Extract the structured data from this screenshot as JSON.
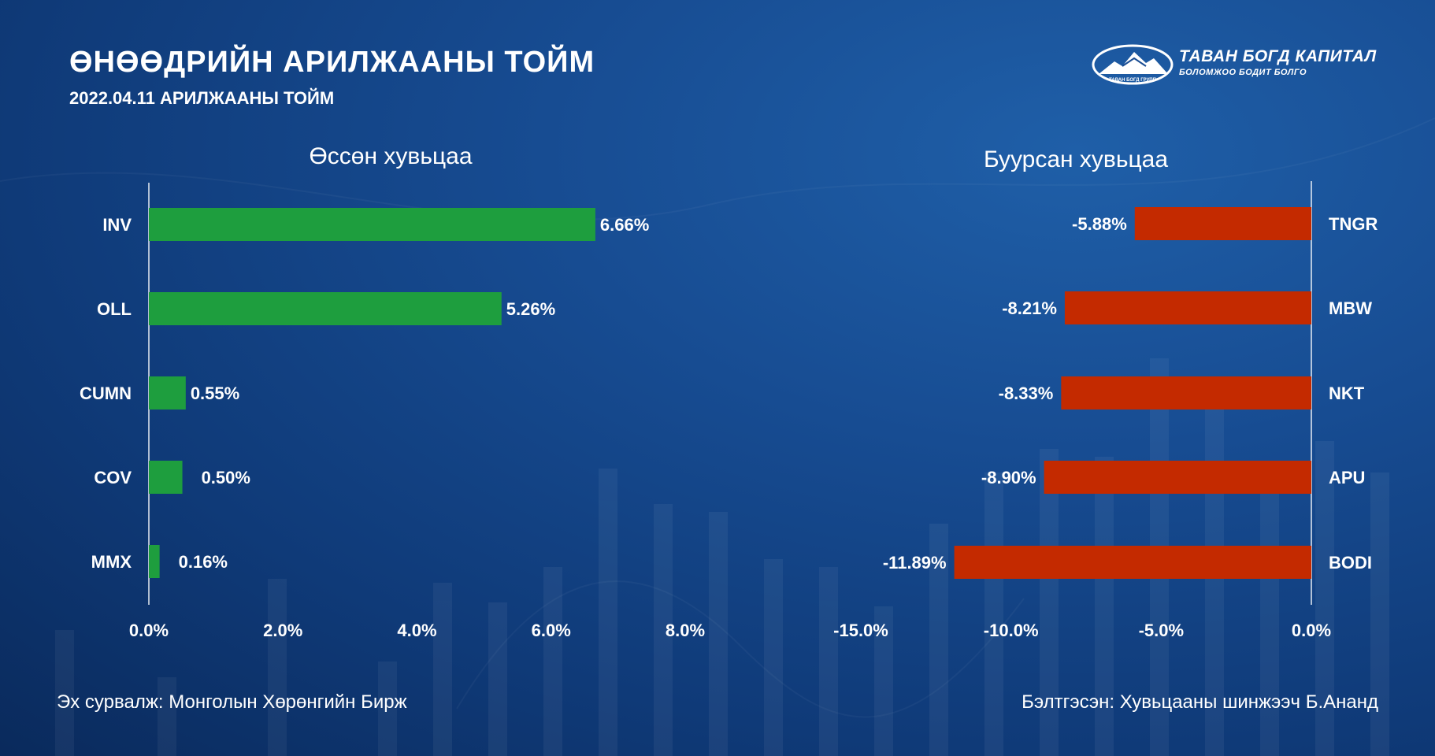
{
  "header": {
    "title": "ӨНӨӨДРИЙН АРИЛЖААНЫ ТОЙМ",
    "subtitle": "2022.04.11 АРИЛЖААНЫ ТОЙМ"
  },
  "logo": {
    "name": "ТАВАН БОГД КАПИТАЛ",
    "tagline": "БОЛОМЖОО БОДИТ БОЛГО",
    "group": "ТАВАН БОГД ГРУПП"
  },
  "footer": {
    "source": "Эх сурвалж: Монголын Хөрөнгийн Бирж",
    "prepared": "Бэлтгэсэн: Хувьцааны шинжээч Б.Ананд"
  },
  "colors": {
    "gain": "#1e9e3e",
    "loss": "#c42a00"
  },
  "chart_data": [
    {
      "type": "bar",
      "orientation": "horizontal",
      "title": "Өссөн хувьцаа",
      "categories": [
        "INV",
        "OLL",
        "CUMN",
        "COV",
        "MMX"
      ],
      "values": [
        6.66,
        5.26,
        0.55,
        0.5,
        0.16
      ],
      "value_labels": [
        "6.66%",
        "5.26%",
        "0.55%",
        "0.50%",
        "0.16%"
      ],
      "xlim": [
        0,
        8
      ],
      "ticks": [
        0,
        2,
        4,
        6,
        8
      ],
      "tick_labels": [
        "0.0%",
        "2.0%",
        "4.0%",
        "6.0%",
        "8.0%"
      ],
      "color": "#1e9e3e"
    },
    {
      "type": "bar",
      "orientation": "horizontal",
      "title": "Буурсан хувьцаа",
      "categories": [
        "TNGR",
        "MBW",
        "NKT",
        "APU",
        "BODI"
      ],
      "values": [
        -5.88,
        -8.21,
        -8.33,
        -8.9,
        -11.89
      ],
      "value_labels": [
        "-5.88%",
        "-8.21%",
        "-8.33%",
        "-8.90%",
        "-11.89%"
      ],
      "xlim": [
        -15,
        0
      ],
      "ticks": [
        -15,
        -10,
        -5,
        0
      ],
      "tick_labels": [
        "-15.0%",
        "-10.0%",
        "-5.0%",
        "0.0%"
      ],
      "color": "#c42a00"
    }
  ]
}
